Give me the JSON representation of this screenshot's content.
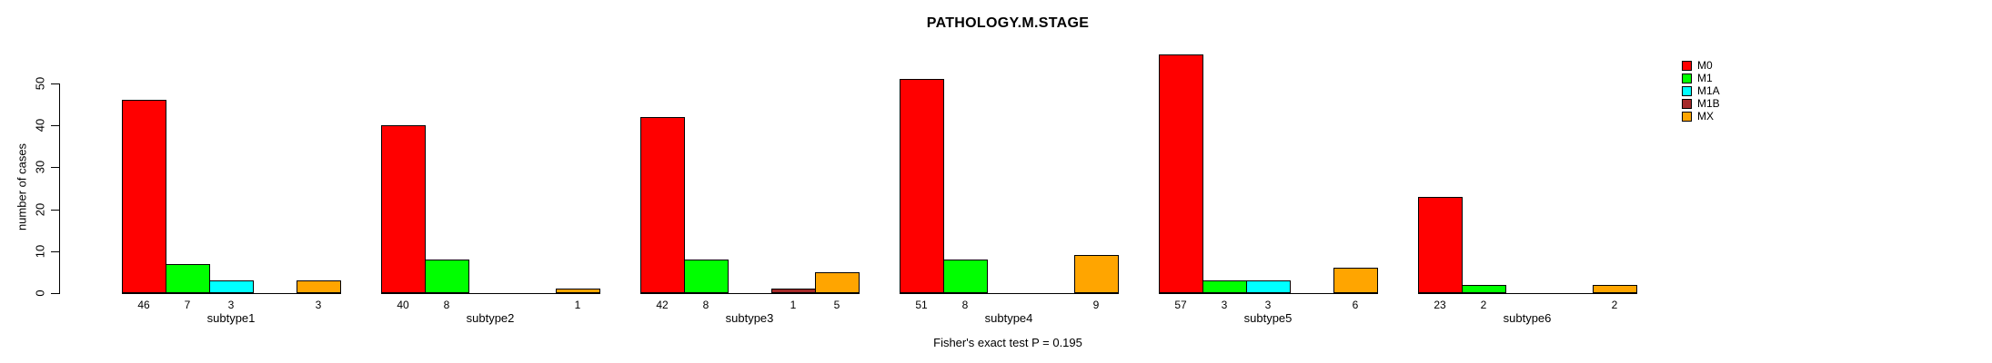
{
  "title": "PATHOLOGY.M.STAGE",
  "ylabel": "number of cases",
  "footnote": "Fisher's exact test P = 0.195",
  "chart_data": {
    "type": "bar",
    "title": "PATHOLOGY.M.STAGE",
    "xlabel": "",
    "ylabel": "number of cases",
    "categories": [
      "subtype1",
      "subtype2",
      "subtype3",
      "subtype4",
      "subtype5",
      "subtype6"
    ],
    "series": [
      {
        "name": "M0",
        "color": "#ff0000",
        "values": [
          46,
          40,
          42,
          51,
          57,
          23
        ]
      },
      {
        "name": "M1",
        "color": "#00ff00",
        "values": [
          7,
          8,
          8,
          8,
          3,
          2
        ]
      },
      {
        "name": "M1A",
        "color": "#00ffff",
        "values": [
          3,
          0,
          0,
          0,
          3,
          0
        ]
      },
      {
        "name": "M1B",
        "color": "#a52a2a",
        "values": [
          0,
          0,
          1,
          0,
          0,
          0
        ]
      },
      {
        "name": "MX",
        "color": "#ffa500",
        "values": [
          3,
          1,
          5,
          9,
          6,
          2
        ]
      }
    ],
    "ylim": [
      0,
      50
    ],
    "yticks": [
      0,
      10,
      20,
      30,
      40,
      50
    ],
    "grid": false,
    "legend_position": "right",
    "bar_labels_shown": true,
    "zero_bars_unlabeled": true,
    "annotation": "Fisher's exact test P = 0.195"
  }
}
